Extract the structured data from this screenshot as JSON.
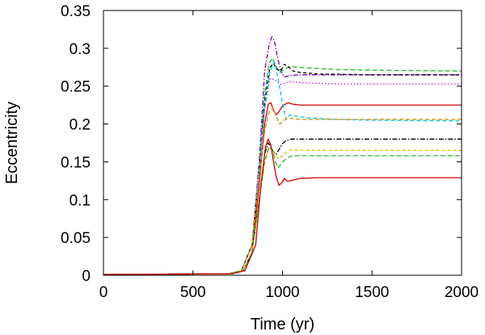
{
  "chart_data": {
    "type": "line",
    "title": "",
    "xlabel": "Time (yr)",
    "ylabel": "Eccentricity",
    "xlim": [
      0,
      2000
    ],
    "ylim": [
      0,
      0.35
    ],
    "grid": false,
    "legend": "none",
    "xticks": [
      0,
      500,
      1000,
      1500,
      2000
    ],
    "yticks": [
      0,
      0.05,
      0.1,
      0.15,
      0.2,
      0.25,
      0.3,
      0.35
    ],
    "xtick_labels": [
      "0",
      "500",
      "1000",
      "1500",
      "2000"
    ],
    "ytick_labels": [
      "0",
      "0.05",
      "0.1",
      "0.15",
      "0.2",
      "0.25",
      "0.3",
      "0.35"
    ],
    "series": [
      {
        "name": "purple-dashdot",
        "color": "#7b00d3",
        "dash": "6,2,1.5,2",
        "x": [
          0,
          700,
          770,
          830,
          870,
          900,
          925,
          940,
          955,
          970,
          990,
          1010,
          1040,
          1100,
          1200,
          1500,
          2000
        ],
        "y": [
          0.001,
          0.002,
          0.006,
          0.04,
          0.15,
          0.27,
          0.305,
          0.315,
          0.31,
          0.29,
          0.27,
          0.262,
          0.264,
          0.265,
          0.265,
          0.265,
          0.265
        ]
      },
      {
        "name": "green-dashed",
        "color": "#22bb22",
        "dash": "6,3",
        "x": [
          0,
          700,
          770,
          830,
          870,
          900,
          925,
          945,
          965,
          985,
          1010,
          1040,
          1080,
          1150,
          1300,
          1500,
          2000
        ],
        "y": [
          0.001,
          0.002,
          0.006,
          0.04,
          0.14,
          0.24,
          0.28,
          0.287,
          0.276,
          0.268,
          0.272,
          0.276,
          0.275,
          0.274,
          0.272,
          0.271,
          0.27
        ]
      },
      {
        "name": "black-dashed",
        "color": "#000000",
        "dash": "4,3",
        "x": [
          0,
          700,
          770,
          830,
          870,
          900,
          930,
          950,
          970,
          990,
          1010,
          1030,
          1060,
          1100,
          1200,
          1500,
          2000
        ],
        "y": [
          0.001,
          0.002,
          0.006,
          0.04,
          0.14,
          0.23,
          0.275,
          0.28,
          0.272,
          0.27,
          0.279,
          0.276,
          0.27,
          0.268,
          0.266,
          0.265,
          0.265
        ]
      },
      {
        "name": "magenta-dotted",
        "color": "#e000e0",
        "dash": "1.5,2.5",
        "x": [
          0,
          700,
          770,
          830,
          870,
          900,
          930,
          960,
          990,
          1010,
          1040,
          1080,
          1150,
          1300,
          1500,
          2000
        ],
        "y": [
          0.001,
          0.002,
          0.006,
          0.04,
          0.13,
          0.22,
          0.26,
          0.258,
          0.252,
          0.254,
          0.256,
          0.255,
          0.254,
          0.253,
          0.253,
          0.253
        ]
      },
      {
        "name": "red-solid-upper",
        "color": "#d00000",
        "dash": "",
        "x": [
          0,
          700,
          780,
          830,
          870,
          900,
          920,
          935,
          950,
          965,
          980,
          1000,
          1030,
          1060,
          1100,
          1200,
          1500,
          2000
        ],
        "y": [
          0.001,
          0.002,
          0.006,
          0.03,
          0.12,
          0.2,
          0.226,
          0.228,
          0.218,
          0.212,
          0.216,
          0.224,
          0.228,
          0.226,
          0.225,
          0.225,
          0.225,
          0.225
        ]
      },
      {
        "name": "cyan-dashed",
        "color": "#00c8d8",
        "dash": "5,3",
        "x": [
          0,
          700,
          770,
          830,
          870,
          900,
          930,
          955,
          975,
          990,
          1005,
          1020,
          1040,
          1080,
          1150,
          1300,
          1500,
          2000
        ],
        "y": [
          0.001,
          0.002,
          0.006,
          0.04,
          0.14,
          0.22,
          0.27,
          0.282,
          0.26,
          0.24,
          0.22,
          0.206,
          0.212,
          0.21,
          0.208,
          0.206,
          0.205,
          0.204
        ]
      },
      {
        "name": "orange-dashed",
        "color": "#e08a00",
        "dash": "5,3",
        "x": [
          0,
          700,
          770,
          830,
          870,
          900,
          925,
          945,
          965,
          985,
          1005,
          1030,
          1060,
          1100,
          1200,
          1500,
          2000
        ],
        "y": [
          0.001,
          0.002,
          0.006,
          0.04,
          0.13,
          0.19,
          0.215,
          0.222,
          0.21,
          0.2,
          0.204,
          0.208,
          0.207,
          0.206,
          0.206,
          0.206,
          0.206
        ]
      },
      {
        "name": "black-dashdot",
        "color": "#000000",
        "dash": "6,2,1.5,2",
        "x": [
          0,
          700,
          780,
          830,
          870,
          900,
          920,
          935,
          950,
          965,
          980,
          1000,
          1020,
          1050,
          1100,
          1200,
          1500,
          2000
        ],
        "y": [
          0.001,
          0.002,
          0.006,
          0.03,
          0.1,
          0.16,
          0.175,
          0.17,
          0.163,
          0.16,
          0.166,
          0.174,
          0.178,
          0.18,
          0.18,
          0.18,
          0.18,
          0.18
        ]
      },
      {
        "name": "yellow-dashed",
        "color": "#d4c000",
        "dash": "4,3",
        "x": [
          0,
          700,
          780,
          830,
          870,
          900,
          920,
          940,
          960,
          980,
          1000,
          1030,
          1060,
          1100,
          1200,
          1500,
          2000
        ],
        "y": [
          0.001,
          0.002,
          0.006,
          0.03,
          0.1,
          0.15,
          0.165,
          0.168,
          0.158,
          0.154,
          0.158,
          0.164,
          0.166,
          0.165,
          0.165,
          0.165,
          0.165
        ]
      },
      {
        "name": "green-dashed-lower",
        "color": "#22bb22",
        "dash": "6,3",
        "x": [
          0,
          700,
          780,
          830,
          870,
          900,
          925,
          945,
          960,
          975,
          990,
          1010,
          1040,
          1080,
          1150,
          1300,
          1500,
          2000
        ],
        "y": [
          0.001,
          0.002,
          0.006,
          0.03,
          0.1,
          0.15,
          0.17,
          0.165,
          0.15,
          0.142,
          0.146,
          0.152,
          0.157,
          0.158,
          0.158,
          0.158,
          0.158,
          0.158
        ]
      },
      {
        "name": "red-solid-lower",
        "color": "#d00000",
        "dash": "",
        "x": [
          0,
          720,
          790,
          850,
          880,
          905,
          920,
          935,
          950,
          965,
          980,
          995,
          1010,
          1030,
          1060,
          1100,
          1200,
          1500,
          2000
        ],
        "y": [
          0.001,
          0.002,
          0.006,
          0.04,
          0.12,
          0.17,
          0.18,
          0.172,
          0.15,
          0.13,
          0.119,
          0.122,
          0.128,
          0.124,
          0.126,
          0.128,
          0.129,
          0.129,
          0.129
        ]
      }
    ]
  }
}
